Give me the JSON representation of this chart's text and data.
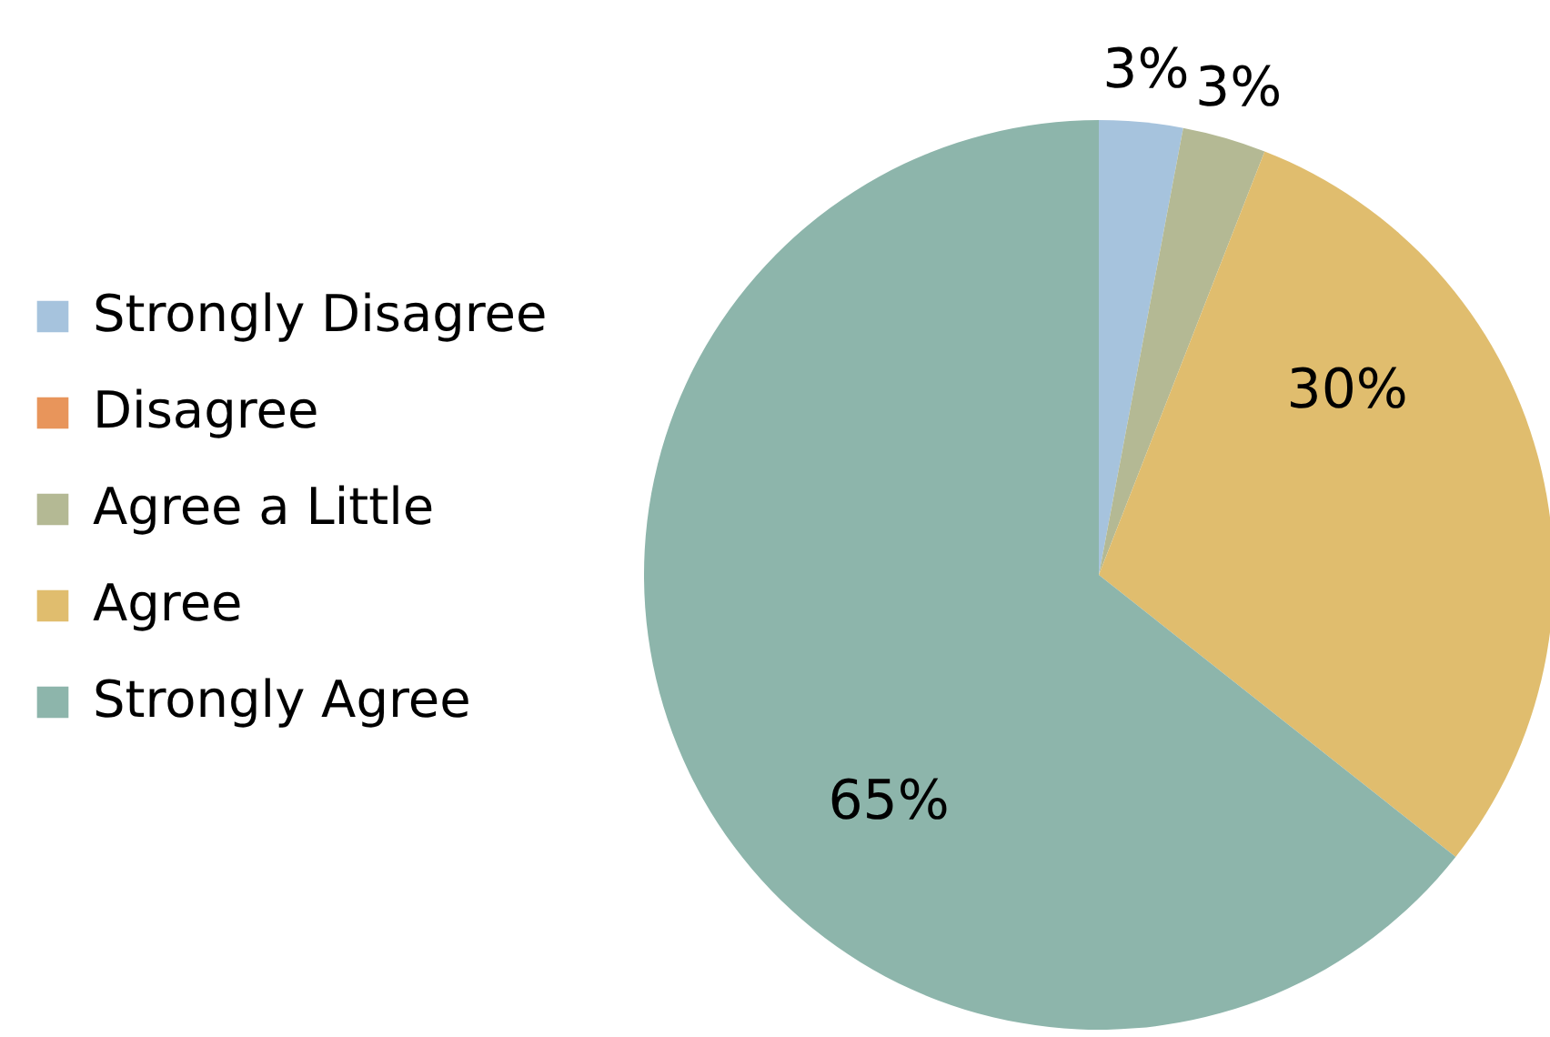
{
  "chart_data": {
    "type": "pie",
    "categories": [
      "Strongly Disagree",
      "Disagree",
      "Agree a Little",
      "Agree",
      "Strongly Agree"
    ],
    "values": [
      3,
      0,
      3,
      30,
      65
    ],
    "colors": [
      "#a6c3dd",
      "#e8955b",
      "#b4b994",
      "#e0bd6e",
      "#8db5ab"
    ],
    "value_labels": [
      "3%",
      null,
      "3%",
      "30%",
      "65%"
    ],
    "legend": "left"
  }
}
